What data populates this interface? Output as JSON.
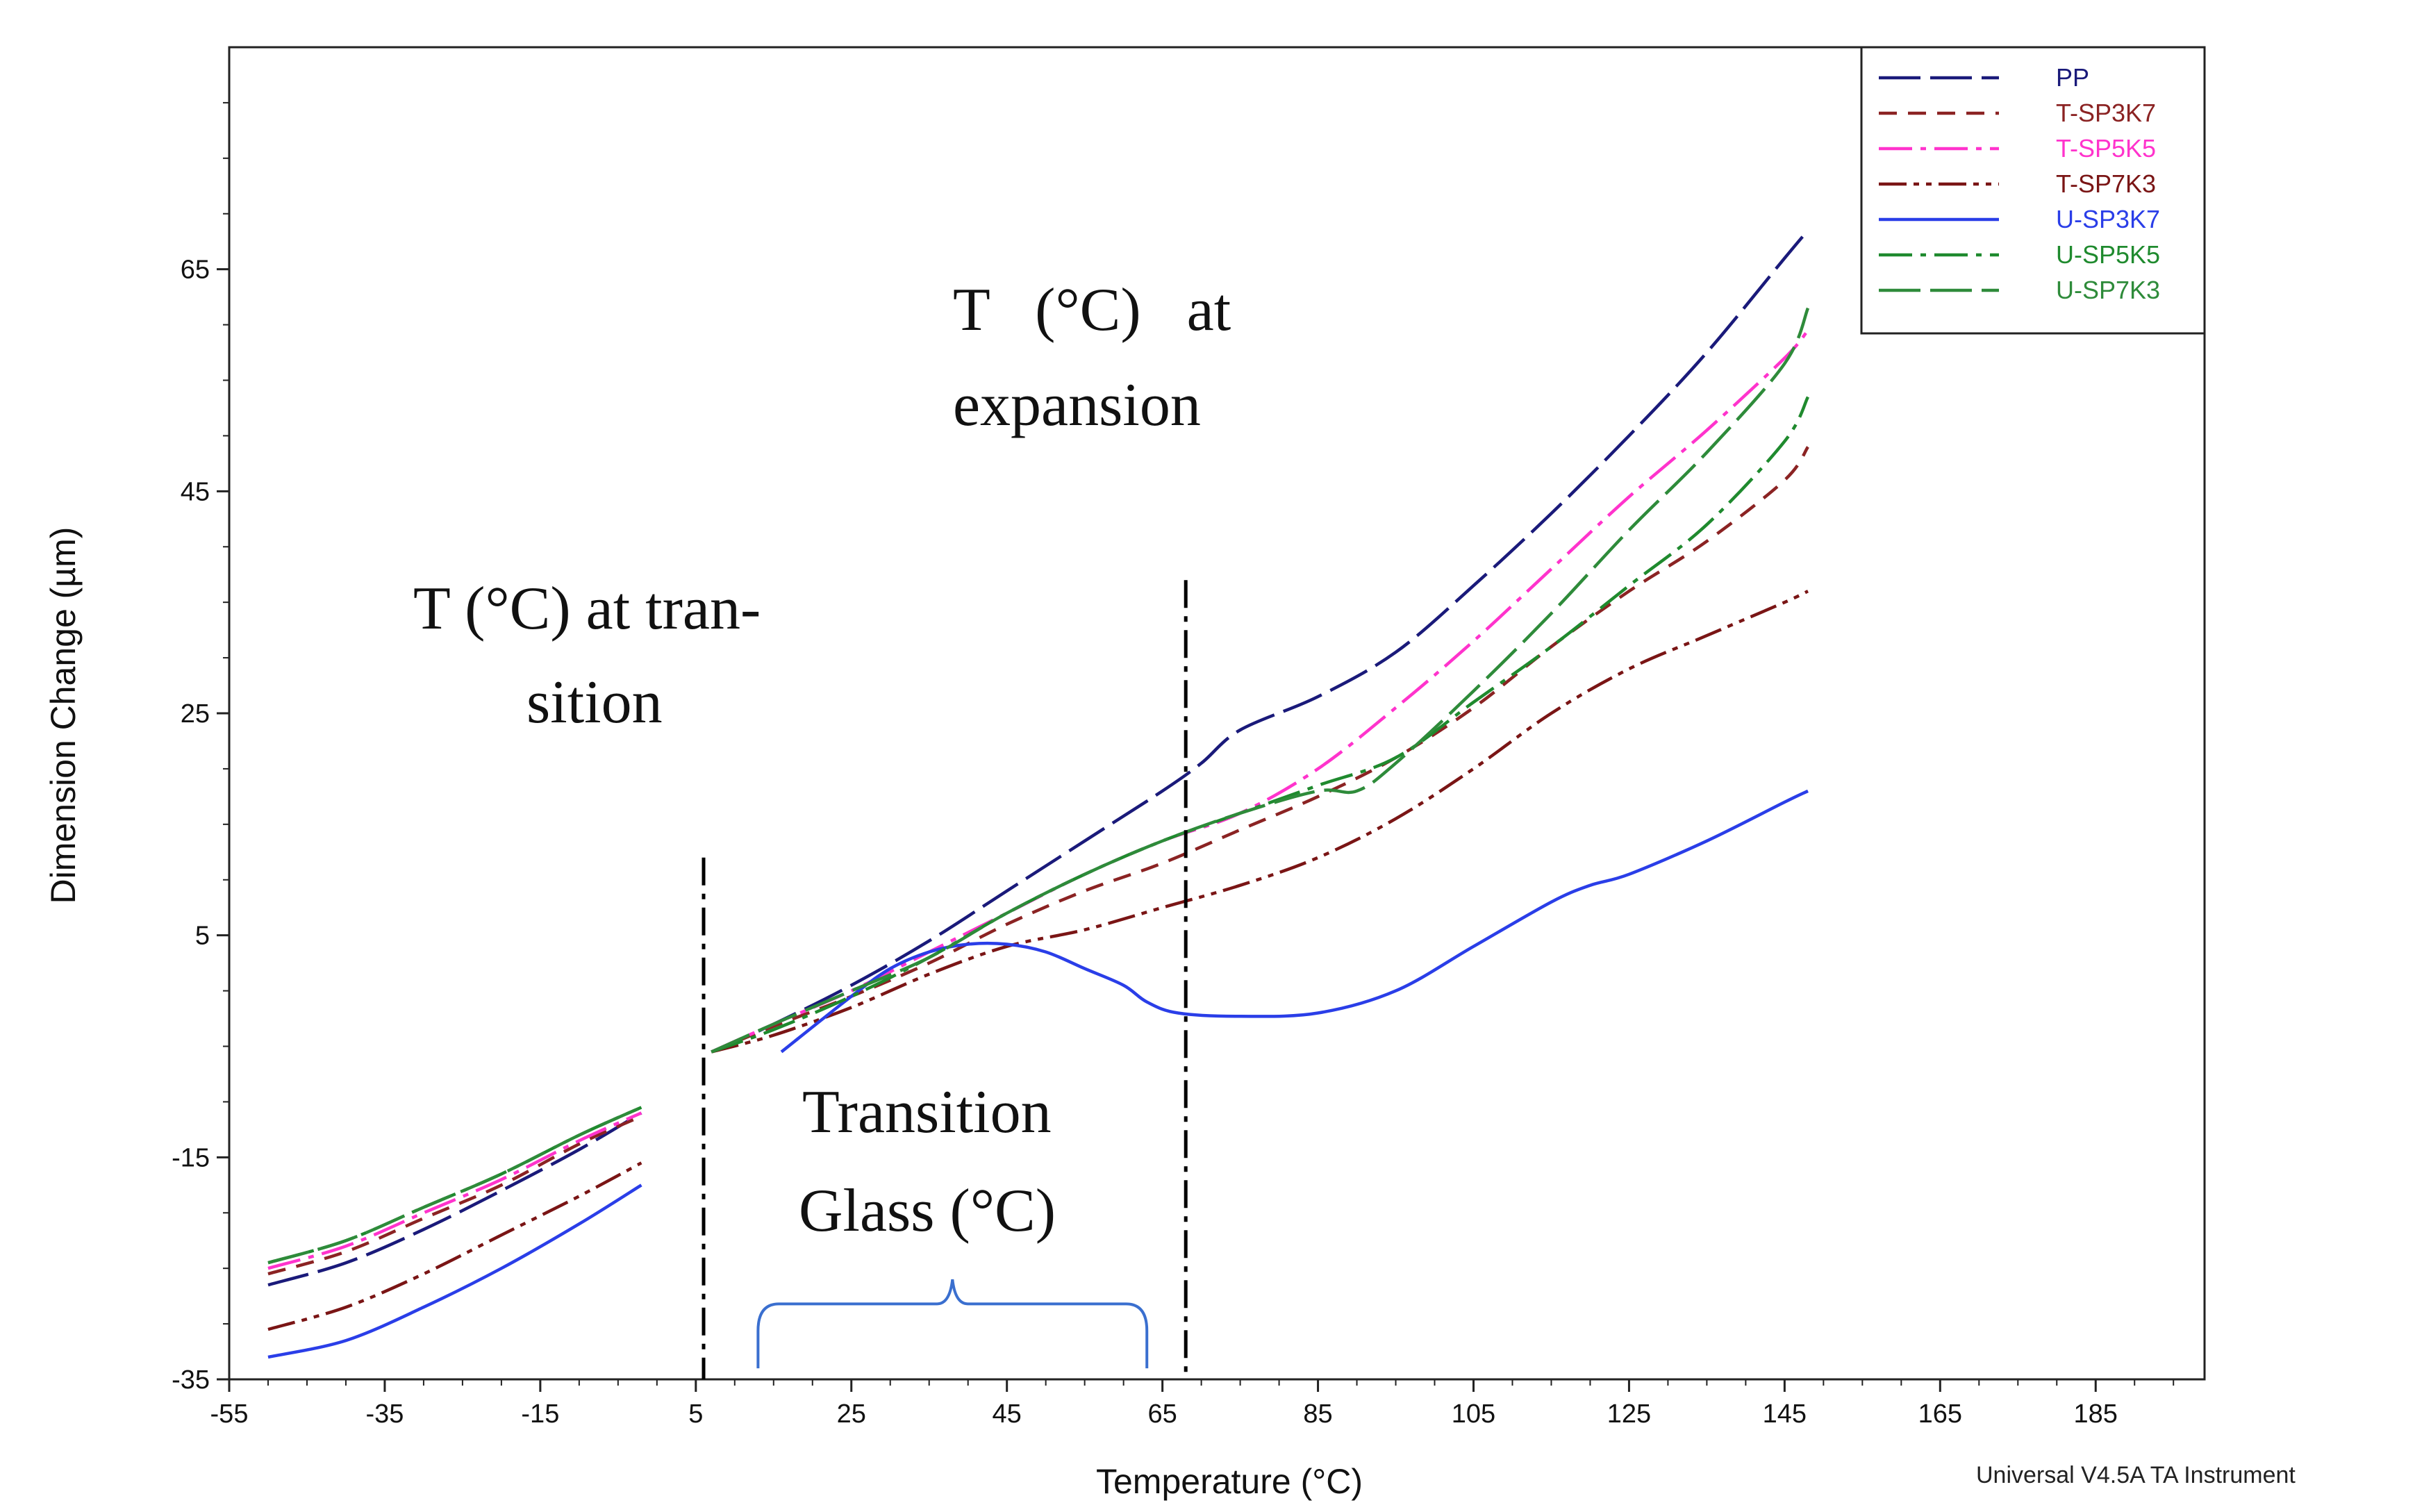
{
  "chart_data": {
    "type": "line",
    "xlabel": "Temperature (°C)",
    "ylabel": "Dimension Change (µm)",
    "xlim": [
      -55,
      199
    ],
    "ylim": [
      -35,
      85
    ],
    "x_ticks": [
      -55,
      -35,
      -15,
      5,
      25,
      45,
      65,
      85,
      105,
      125,
      145,
      165,
      185
    ],
    "x_tick_labels": [
      "-55",
      "-35",
      "-15",
      "5",
      "25",
      "45",
      "65",
      "85",
      "105",
      "125",
      "145",
      "165",
      "185"
    ],
    "y_ticks": [
      -35,
      -15,
      5,
      25,
      45,
      65
    ],
    "y_tick_labels": [
      "-35",
      "-15",
      "5",
      "25",
      "45",
      "65"
    ],
    "legend_position": "top-right",
    "series": [
      {
        "name": "PP",
        "color": "#1a1a7a",
        "dash": "long",
        "segments": [
          [
            [
              -50,
              -26.5
            ],
            [
              -40,
              -24.5
            ],
            [
              -30,
              -21.5
            ],
            [
              -20,
              -18
            ],
            [
              -10,
              -14.3
            ],
            [
              -2,
              -11
            ]
          ],
          [
            [
              7,
              -5.5
            ],
            [
              15,
              -3
            ],
            [
              25,
              0.5
            ],
            [
              35,
              4.5
            ],
            [
              45,
              9
            ],
            [
              55,
              13.5
            ],
            [
              65,
              18
            ],
            [
              70,
              20.5
            ],
            [
              75,
              23.5
            ],
            [
              85,
              26.5
            ],
            [
              95,
              30.5
            ],
            [
              105,
              36.5
            ],
            [
              115,
              43
            ],
            [
              125,
              50
            ],
            [
              135,
              57.5
            ],
            [
              145,
              66
            ],
            [
              148,
              68.5
            ]
          ]
        ]
      },
      {
        "name": "T-SP3K7",
        "color": "#8b2323",
        "dash": "short",
        "segments": [
          [
            [
              -50,
              -25.5
            ],
            [
              -40,
              -23.5
            ],
            [
              -30,
              -20.5
            ],
            [
              -20,
              -17.5
            ],
            [
              -10,
              -13.8
            ],
            [
              -2,
              -11.3
            ]
          ],
          [
            [
              7,
              -5.5
            ],
            [
              15,
              -3.2
            ],
            [
              25,
              -0.5
            ],
            [
              35,
              2.5
            ],
            [
              45,
              6
            ],
            [
              55,
              9
            ],
            [
              65,
              11.5
            ],
            [
              75,
              14.5
            ],
            [
              85,
              17.5
            ],
            [
              95,
              21
            ],
            [
              105,
              25.5
            ],
            [
              115,
              31
            ],
            [
              125,
              36
            ],
            [
              135,
              40.5
            ],
            [
              145,
              46
            ],
            [
              148,
              49
            ]
          ]
        ]
      },
      {
        "name": "T-SP5K5",
        "color": "#ff33cc",
        "dash": "dashdot",
        "segments": [
          [
            [
              -50,
              -25
            ],
            [
              -40,
              -23
            ],
            [
              -30,
              -20
            ],
            [
              -20,
              -17
            ],
            [
              -10,
              -13.5
            ],
            [
              -2,
              -11
            ]
          ],
          [
            [
              7,
              -5.5
            ],
            [
              15,
              -3
            ],
            [
              25,
              0
            ],
            [
              35,
              3.5
            ],
            [
              45,
              7
            ],
            [
              55,
              10.5
            ],
            [
              65,
              13.5
            ],
            [
              75,
              16
            ],
            [
              85,
              20
            ],
            [
              95,
              25.5
            ],
            [
              105,
              31.5
            ],
            [
              115,
              38
            ],
            [
              125,
              44.5
            ],
            [
              135,
              50.5
            ],
            [
              145,
              57
            ],
            [
              148,
              59.5
            ]
          ]
        ]
      },
      {
        "name": "T-SP7K3",
        "color": "#7a1515",
        "dash": "dashdotdot",
        "segments": [
          [
            [
              -50,
              -30.5
            ],
            [
              -40,
              -28.5
            ],
            [
              -30,
              -25.5
            ],
            [
              -20,
              -22
            ],
            [
              -10,
              -18.5
            ],
            [
              -2,
              -15.5
            ]
          ],
          [
            [
              7,
              -5.5
            ],
            [
              15,
              -4
            ],
            [
              25,
              -1.5
            ],
            [
              35,
              1.5
            ],
            [
              45,
              4
            ],
            [
              55,
              5.5
            ],
            [
              65,
              7.5
            ],
            [
              75,
              9.5
            ],
            [
              85,
              12
            ],
            [
              95,
              15.5
            ],
            [
              105,
              20
            ],
            [
              115,
              25
            ],
            [
              125,
              29
            ],
            [
              135,
              32
            ],
            [
              145,
              35
            ],
            [
              148,
              36
            ]
          ]
        ]
      },
      {
        "name": "U-SP3K7",
        "color": "#2a3ee8",
        "dash": "solid",
        "segments": [
          [
            [
              -50,
              -33
            ],
            [
              -40,
              -31.5
            ],
            [
              -30,
              -28.5
            ],
            [
              -20,
              -25
            ],
            [
              -10,
              -21
            ],
            [
              -2,
              -17.5
            ]
          ],
          [
            [
              16,
              -5.5
            ],
            [
              25,
              -0.5
            ],
            [
              30,
              2
            ],
            [
              35,
              3.5
            ],
            [
              40,
              4.2
            ],
            [
              45,
              4.2
            ],
            [
              50,
              3.5
            ],
            [
              55,
              2
            ],
            [
              60,
              0.5
            ],
            [
              63,
              -1
            ],
            [
              67,
              -2
            ],
            [
              75,
              -2.3
            ],
            [
              85,
              -2
            ],
            [
              95,
              0
            ],
            [
              105,
              4
            ],
            [
              115,
              8
            ],
            [
              120,
              9.5
            ],
            [
              125,
              10.5
            ],
            [
              135,
              13.5
            ],
            [
              145,
              17
            ],
            [
              148,
              18
            ]
          ]
        ]
      },
      {
        "name": "U-SP5K5",
        "color": "#1f8a2e",
        "dash": "dashdot",
        "segments": [
          [
            [
              -50,
              -24.5
            ],
            [
              -40,
              -22.5
            ],
            [
              -30,
              -19.5
            ],
            [
              -20,
              -16.5
            ],
            [
              -10,
              -13
            ],
            [
              -2,
              -10.5
            ]
          ],
          [
            [
              7,
              -5.5
            ],
            [
              15,
              -3.5
            ],
            [
              25,
              -0.5
            ],
            [
              35,
              3
            ],
            [
              45,
              7
            ],
            [
              55,
              10.5
            ],
            [
              65,
              13.5
            ],
            [
              75,
              16
            ],
            [
              85,
              18.5
            ],
            [
              95,
              21
            ],
            [
              105,
              26
            ],
            [
              115,
              31
            ],
            [
              125,
              36.5
            ],
            [
              135,
              42
            ],
            [
              145,
              49.5
            ],
            [
              148,
              53.5
            ]
          ]
        ]
      },
      {
        "name": "U-SP7K3",
        "color": "#2e8b3a",
        "dash": "long",
        "segments": [
          [
            [
              -50,
              -24.5
            ],
            [
              -40,
              -22.5
            ],
            [
              -30,
              -19.5
            ],
            [
              -20,
              -16.5
            ],
            [
              -10,
              -13
            ],
            [
              -2,
              -10.5
            ]
          ],
          [
            [
              7,
              -5.5
            ],
            [
              15,
              -3
            ],
            [
              25,
              0
            ],
            [
              35,
              3
            ],
            [
              45,
              7
            ],
            [
              55,
              10.5
            ],
            [
              65,
              13.5
            ],
            [
              75,
              16
            ],
            [
              85,
              18
            ],
            [
              90,
              18
            ],
            [
              95,
              20.5
            ],
            [
              105,
              27
            ],
            [
              115,
              34
            ],
            [
              125,
              41.5
            ],
            [
              135,
              48.5
            ],
            [
              145,
              56.5
            ],
            [
              148,
              61.5
            ]
          ]
        ]
      }
    ],
    "annotations": {
      "transition_label_line1": "T (°C) at tran-",
      "transition_label_line2": "sition",
      "expansion_label_line1": "T   (°C)   at",
      "expansion_label_line2": "expansion",
      "glass_label_line1": "Transition",
      "glass_label_line2": "Glass (°C)",
      "transition_line_x": 6,
      "expansion_line_x": 68,
      "brace_x_start": 13,
      "brace_x_end": 63,
      "brace_color": "#3a6fcf"
    },
    "footer": "Universal V4.5A TA Instrument"
  }
}
